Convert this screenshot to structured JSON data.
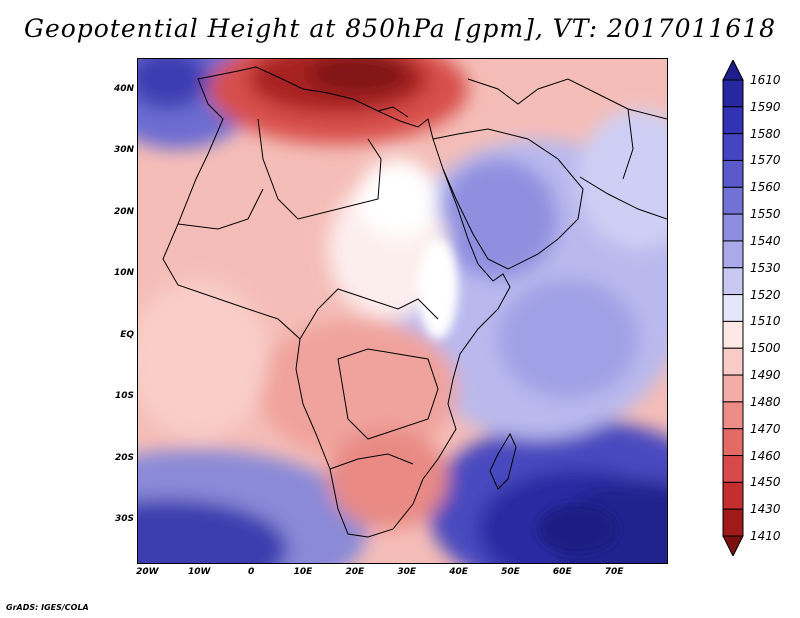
{
  "title": "Geopotential Height at 850hPa [gpm], VT: 2017011618",
  "credit": "GrADS: IGES/COLA",
  "map": {
    "lon_range": [
      -22,
      80
    ],
    "lat_range": [
      -37,
      45
    ],
    "lat_labels": [
      "40N",
      "30N",
      "20N",
      "10N",
      "EQ",
      "10S",
      "20S",
      "30S"
    ],
    "lat_values": [
      40,
      30,
      20,
      10,
      0,
      -10,
      -20,
      -30
    ],
    "lon_labels": [
      "20W",
      "10W",
      "0",
      "10E",
      "20E",
      "30E",
      "40E",
      "50E",
      "60E",
      "70E"
    ],
    "lon_values": [
      -20,
      -10,
      0,
      10,
      20,
      30,
      40,
      50,
      60,
      70
    ]
  },
  "colorbar": {
    "labels": [
      "1610",
      "1590",
      "1580",
      "1570",
      "1560",
      "1550",
      "1540",
      "1530",
      "1520",
      "1510",
      "1500",
      "1490",
      "1480",
      "1470",
      "1460",
      "1450",
      "1430",
      "1410"
    ],
    "colors": [
      "#1e1e8c",
      "#2727a0",
      "#3232b4",
      "#4545c2",
      "#5a5acd",
      "#7272d6",
      "#8e8ee0",
      "#aaaaea",
      "#c8c8f2",
      "#e6e6fa",
      "#fde8e6",
      "#f9cbc6",
      "#f3aca6",
      "#ec8c86",
      "#e46a66",
      "#d84a4a",
      "#c42e2e",
      "#a01a1a",
      "#7a1010"
    ]
  }
}
